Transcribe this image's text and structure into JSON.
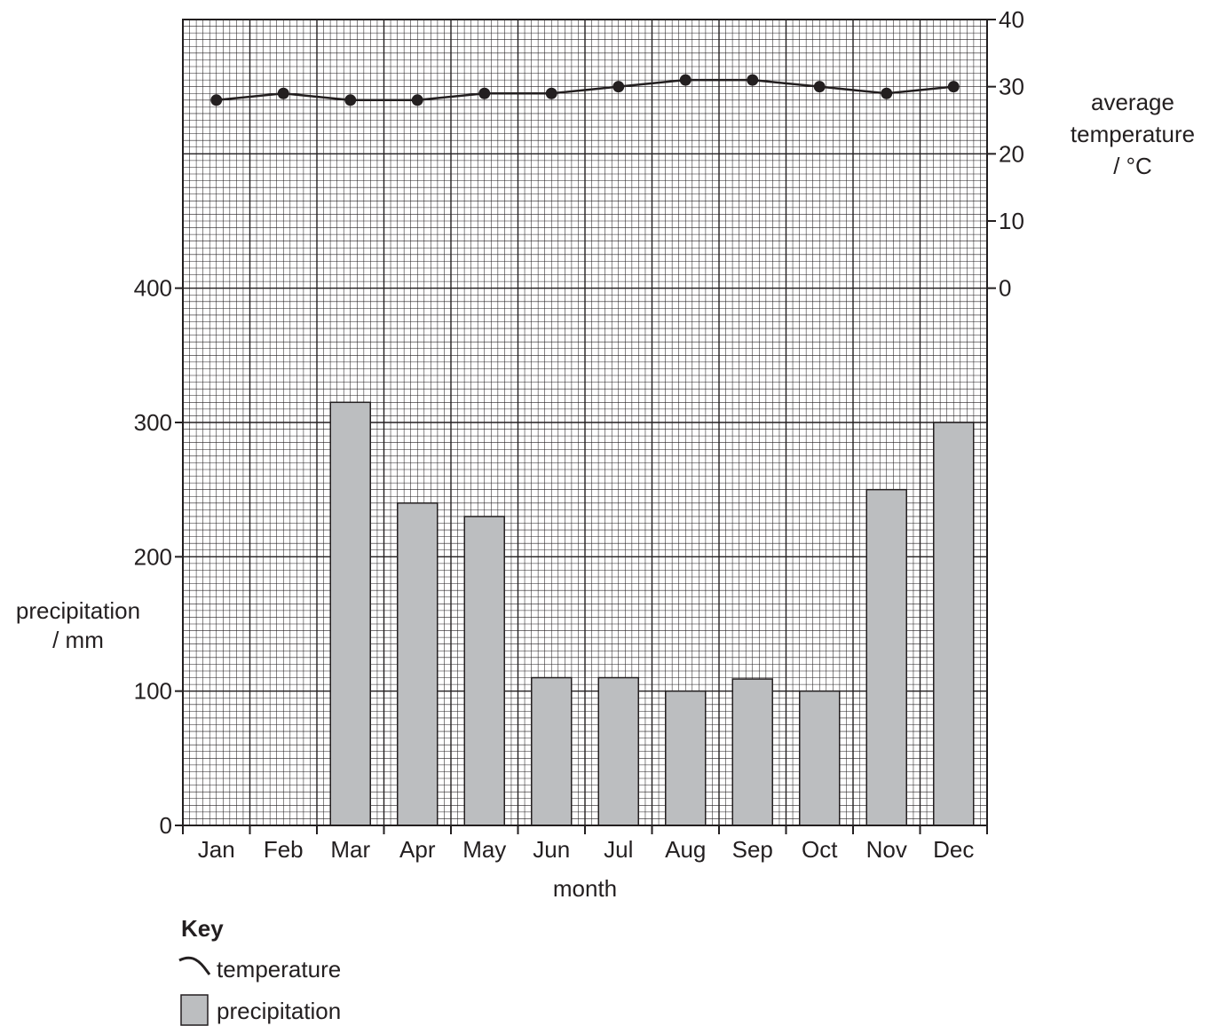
{
  "chart_data": {
    "type": "bar+line",
    "categories": [
      "Jan",
      "Feb",
      "Mar",
      "Apr",
      "May",
      "Jun",
      "Jul",
      "Aug",
      "Sep",
      "Oct",
      "Nov",
      "Dec"
    ],
    "xlabel": "month",
    "series": [
      {
        "name": "precipitation",
        "type": "bar",
        "axis": "left",
        "values": [
          0,
          0,
          315,
          240,
          230,
          110,
          110,
          100,
          109,
          100,
          250,
          300
        ]
      },
      {
        "name": "temperature",
        "type": "line",
        "axis": "right",
        "values": [
          28,
          29,
          28,
          28,
          29,
          29,
          30,
          31,
          31,
          30,
          29,
          30
        ]
      }
    ],
    "y_left": {
      "label_line1": "precipitation",
      "label_line2": "/ mm",
      "ticks": [
        "0",
        "100",
        "200",
        "300",
        "400"
      ],
      "tick_values": [
        0,
        100,
        200,
        300,
        400
      ],
      "range": [
        0,
        600
      ]
    },
    "y_right": {
      "label_line1": "average",
      "label_line2": "temperature",
      "label_line3": "/ °C",
      "ticks": [
        "0",
        "10",
        "20",
        "30",
        "40"
      ],
      "tick_values": [
        0,
        10,
        20,
        30,
        40
      ],
      "range": [
        0,
        40
      ]
    },
    "grid": true,
    "legend": {
      "placement": "bottom-left",
      "title": "Key",
      "line_label": "temperature",
      "bar_label": "precipitation"
    },
    "colors": {
      "bar_fill": "#bcbec0",
      "ink": "#231f20",
      "grid": "#231f20"
    }
  }
}
